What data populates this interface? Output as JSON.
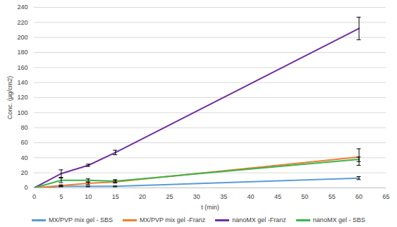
{
  "chart_data": {
    "type": "line",
    "x_label": "t (min)",
    "y_label": "Conc. (µg/cm2)",
    "x": [
      0,
      5,
      10,
      15,
      60
    ],
    "series": [
      {
        "name": "MX/PVP mix gel - SBS",
        "color": "#5b9bd5",
        "values": [
          0,
          2,
          2,
          2,
          13
        ],
        "errors": [
          0,
          0.5,
          0.5,
          0.5,
          2
        ]
      },
      {
        "name": "MX/PVP mix gel -Franz",
        "color": "#ed7d31",
        "values": [
          0,
          3,
          6,
          8,
          41
        ],
        "errors": [
          0,
          1,
          1.5,
          1.5,
          11
        ]
      },
      {
        "name": "nanoMX gel -Franz",
        "color": "#7030a0",
        "values": [
          0,
          19,
          30,
          47,
          212
        ],
        "errors": [
          0,
          5,
          1.5,
          3,
          15
        ]
      },
      {
        "name": "nanoMX gel - SBS",
        "color": "#3cb44b",
        "values": [
          0,
          10,
          10,
          9,
          38
        ],
        "errors": [
          0,
          3,
          2,
          2,
          3
        ]
      }
    ],
    "xlim": [
      0,
      65
    ],
    "xticks": [
      0,
      5,
      10,
      15,
      20,
      25,
      30,
      35,
      40,
      45,
      50,
      55,
      60,
      65
    ],
    "ylim": [
      0,
      240
    ],
    "yticks": [
      0,
      20,
      40,
      60,
      80,
      100,
      120,
      140,
      160,
      180,
      200,
      220,
      240
    ],
    "grid": true,
    "legend": "bottom"
  }
}
